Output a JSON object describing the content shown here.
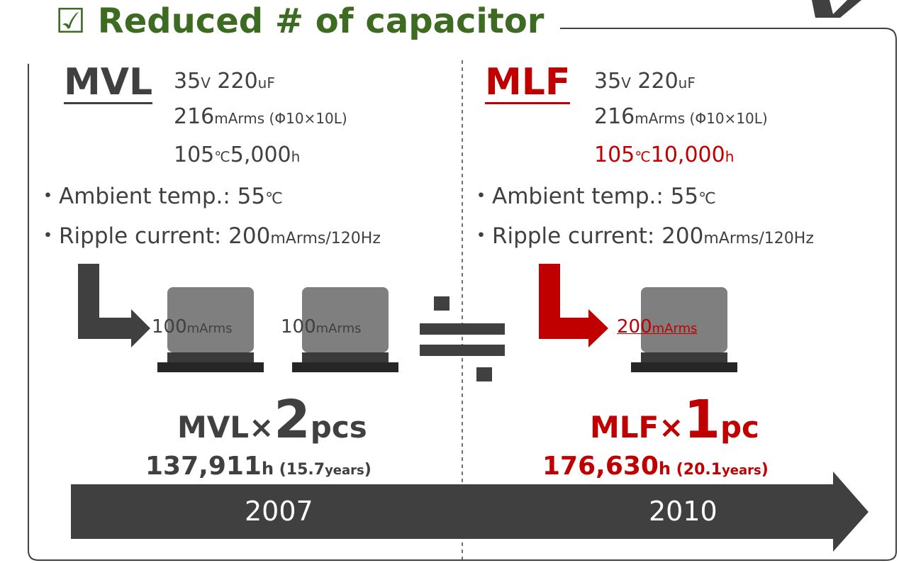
{
  "title": "☑ Reduced # of capacitor",
  "left": {
    "name": "MVL",
    "spec": [
      [
        "35",
        "V",
        " 220",
        "uF"
      ],
      [
        "216",
        "mArms (Φ10×10",
        "L",
        ")"
      ],
      [
        "105",
        "℃",
        "5,000",
        "h"
      ]
    ],
    "conditions": [
      [
        "・Ambient temp.: 55",
        "℃"
      ],
      [
        "・Ripple current: 200",
        "mArms/120Hz"
      ]
    ],
    "currents": [
      [
        "100",
        "mArms"
      ],
      [
        "100",
        "mArms"
      ]
    ],
    "result": [
      "MVL×",
      "2",
      "pcs"
    ],
    "life": [
      "137,911",
      "h",
      " (15.7",
      "years",
      ")"
    ],
    "year": "2007"
  },
  "right": {
    "name": "MLF",
    "spec": [
      [
        "35",
        "V",
        " 220",
        "uF"
      ],
      [
        "216",
        "mArms (Φ10×10",
        "L",
        ")"
      ],
      [
        "105",
        "℃",
        "10,000",
        "h"
      ]
    ],
    "conditions": [
      [
        "・Ambient temp.: 55",
        "℃"
      ],
      [
        "・Ripple current: 200",
        "mArms/120Hz"
      ]
    ],
    "currents": [
      [
        "200",
        "mArms"
      ]
    ],
    "result": [
      "MLF×",
      "1",
      "pc"
    ],
    "life": [
      "176,630",
      "h",
      " (20.1",
      "years",
      ")"
    ],
    "year": "2010"
  }
}
